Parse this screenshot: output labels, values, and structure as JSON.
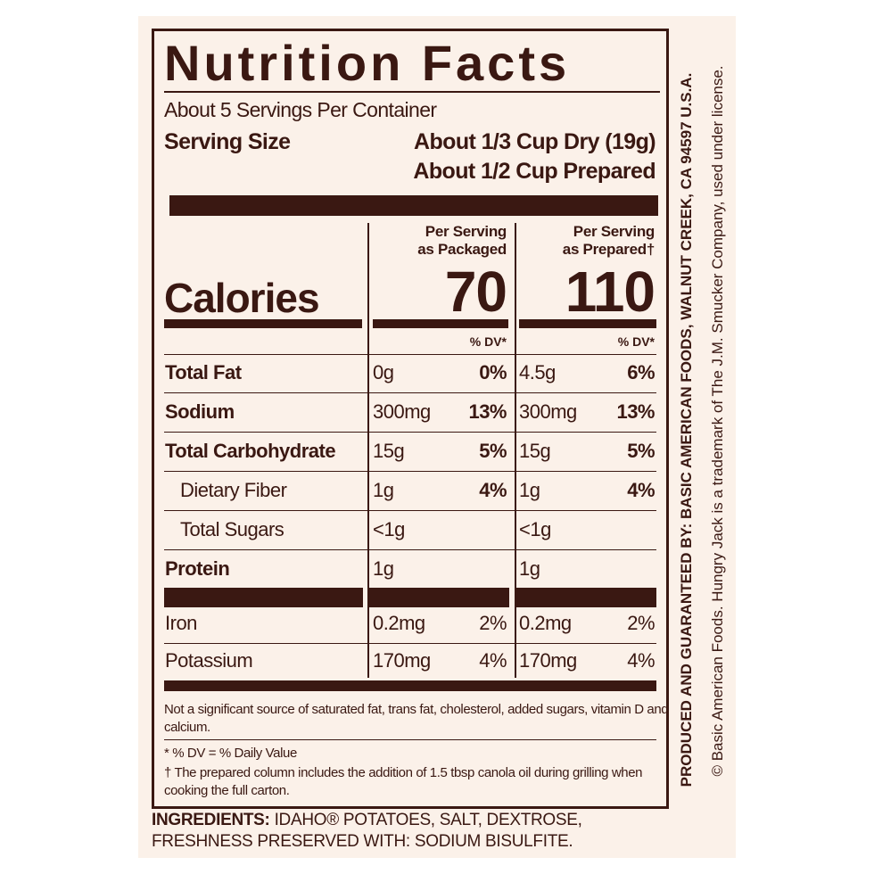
{
  "title": "Nutrition Facts",
  "servings": "About 5 Servings Per Container",
  "serving_size": {
    "label": "Serving Size",
    "dry": "About 1/3 Cup Dry (19g)",
    "prepared": "About 1/2 Cup Prepared"
  },
  "calories_label": "Calories",
  "columns": [
    {
      "header": [
        "Per Serving",
        "as Packaged"
      ],
      "calories": "70",
      "dv_header": "% DV*"
    },
    {
      "header": [
        "Per Serving",
        "as Prepared†"
      ],
      "calories": "110",
      "dv_header": "% DV*"
    }
  ],
  "rows": [
    {
      "name": "Total Fat",
      "bold": true,
      "indent": false,
      "cells": [
        [
          "0g",
          "0%"
        ],
        [
          "4.5g",
          "6%"
        ]
      ]
    },
    {
      "name": "Sodium",
      "bold": true,
      "indent": false,
      "cells": [
        [
          "300mg",
          "13%"
        ],
        [
          "300mg",
          "13%"
        ]
      ]
    },
    {
      "name": "Total Carbohydrate",
      "bold": true,
      "indent": false,
      "cells": [
        [
          "15g",
          "5%"
        ],
        [
          "15g",
          "5%"
        ]
      ]
    },
    {
      "name": "Dietary Fiber",
      "bold": false,
      "indent": true,
      "cells": [
        [
          "1g",
          "4%"
        ],
        [
          "1g",
          "4%"
        ]
      ]
    },
    {
      "name": "Total Sugars",
      "bold": false,
      "indent": true,
      "cells": [
        [
          "<1g"
        ],
        [
          "<1g"
        ]
      ]
    },
    {
      "name": "Protein",
      "bold": true,
      "indent": false,
      "cells": [
        [
          "1g"
        ],
        [
          "1g"
        ]
      ]
    }
  ],
  "minerals": [
    {
      "name": "Iron",
      "bold": false,
      "indent": false,
      "cells": [
        [
          "0.2mg",
          "2%"
        ],
        [
          "0.2mg",
          "2%"
        ]
      ]
    },
    {
      "name": "Potassium",
      "bold": false,
      "indent": false,
      "cells": [
        [
          "170mg",
          "4%"
        ],
        [
          "170mg",
          "4%"
        ]
      ]
    }
  ],
  "footnotes": {
    "not_significant": "Not a significant source of saturated fat, trans fat, cholesterol, added sugars, vitamin D and calcium.",
    "dv": "* % DV = % Daily Value",
    "prepared": "† The prepared column includes the addition of 1.5 tbsp canola oil during grilling when cooking the full carton."
  },
  "ingredients": {
    "label": "INGREDIENTS:",
    "text": "IDAHO® POTATOES, SALT, DEXTROSE, FRESHNESS PRESERVED WITH: SODIUM BISULFITE."
  },
  "side_text": {
    "producer": "PRODUCED AND GUARANTEED BY: BASIC AMERICAN FOODS, WALNUT CREEK, CA 94597 U.S.A.",
    "trademark": "© Basic American Foods. Hungry Jack is a trademark of The J.M. Smucker Company, used under license."
  }
}
